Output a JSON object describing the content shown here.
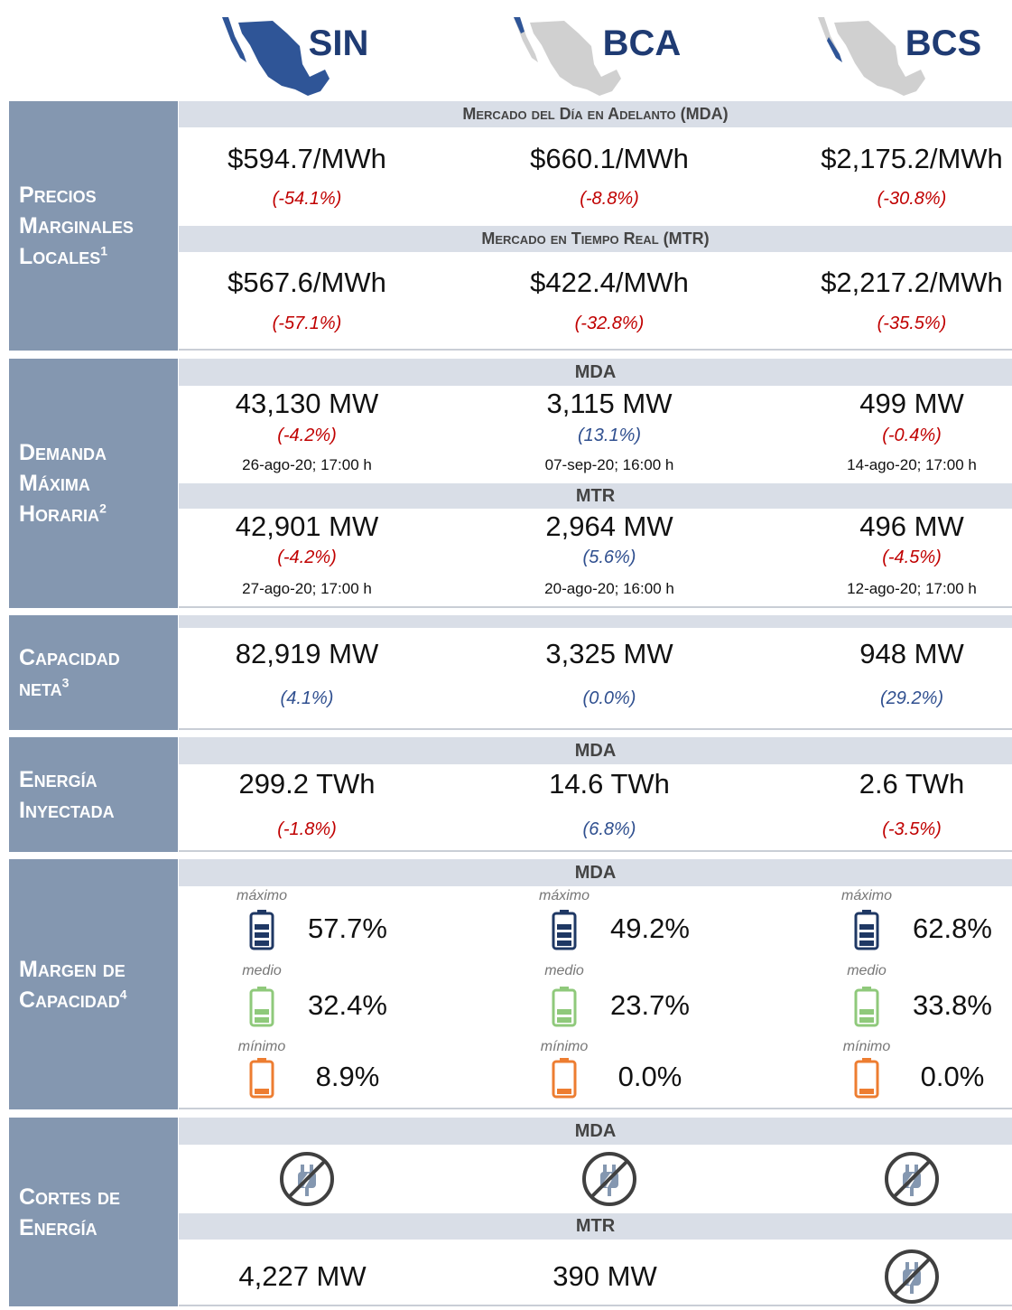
{
  "columns": [
    "SIN",
    "BCA",
    "BCS"
  ],
  "precios": {
    "label": "Precios Marginales Locales",
    "note": "1",
    "mda": {
      "header": "Mercado del Día en Adelanto (MDA)",
      "values": [
        "$594.7/MWh",
        "$660.1/MWh",
        "$2,175.2/MWh"
      ],
      "changes": [
        "(-54.1%)",
        "(-8.8%)",
        "(-30.8%)"
      ]
    },
    "mtr": {
      "header": "Mercado en Tiempo Real (MTR)",
      "values": [
        "$567.6/MWh",
        "$422.4/MWh",
        "$2,217.2/MWh"
      ],
      "changes": [
        "(-57.1%)",
        "(-32.8%)",
        "(-35.5%)"
      ]
    }
  },
  "demanda": {
    "label": "Demanda Máxima Horaria",
    "note": "2",
    "mda": {
      "header": "MDA",
      "values": [
        "43,130 MW",
        "3,115 MW",
        "499 MW"
      ],
      "changes": [
        "(-4.2%)",
        "(13.1%)",
        "(-0.4%)"
      ],
      "dates": [
        "26-ago-20; 17:00 h",
        "07-sep-20; 16:00 h",
        "14-ago-20; 17:00 h"
      ]
    },
    "mtr": {
      "header": "MTR",
      "values": [
        "42,901 MW",
        "2,964 MW",
        "496 MW"
      ],
      "changes": [
        "(-4.2%)",
        "(5.6%)",
        "(-4.5%)"
      ],
      "dates": [
        "27-ago-20; 17:00 h",
        "20-ago-20; 16:00 h",
        "12-ago-20; 17:00 h"
      ]
    }
  },
  "capacidad": {
    "label": "Capacidad neta",
    "note": "3",
    "values": [
      "82,919 MW",
      "3,325 MW",
      "948 MW"
    ],
    "changes": [
      "(4.1%)",
      "(0.0%)",
      "(29.2%)"
    ]
  },
  "energia": {
    "label": "Energía Inyectada",
    "header": "MDA",
    "values": [
      "299.2 TWh",
      "14.6 TWh",
      "2.6 TWh"
    ],
    "changes": [
      "(-1.8%)",
      "(6.8%)",
      "(-3.5%)"
    ]
  },
  "margen": {
    "label": "Margen de Capacidad",
    "note": "4",
    "header": "MDA",
    "levels": [
      "máximo",
      "medio",
      "mínimo"
    ],
    "values": [
      [
        "57.7%",
        "32.4%",
        "8.9%"
      ],
      [
        "49.2%",
        "23.7%",
        "0.0%"
      ],
      [
        "62.8%",
        "33.8%",
        "0.0%"
      ]
    ]
  },
  "cortes": {
    "label": "Cortes de Energía",
    "mda_header": "MDA",
    "mtr_header": "MTR",
    "mtr_values": [
      "4,227 MW",
      "390 MW"
    ]
  }
}
